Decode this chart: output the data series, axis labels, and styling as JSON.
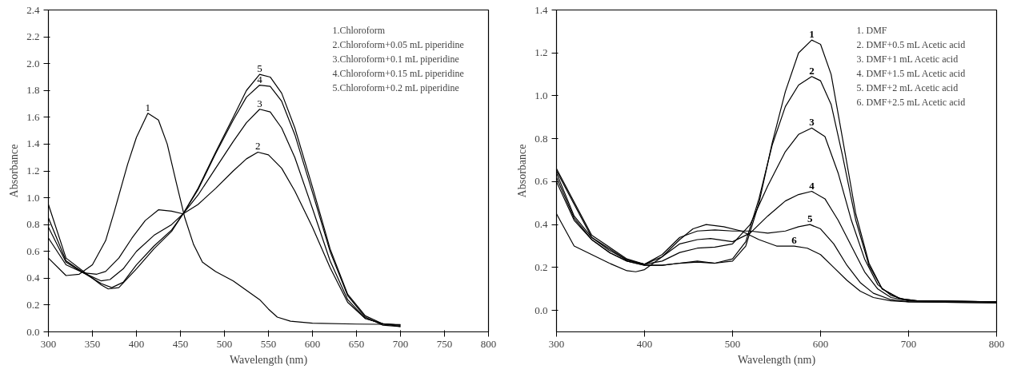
{
  "chart_data": [
    {
      "type": "line",
      "xlabel": "Wavelength (nm)",
      "ylabel": "Absorbance",
      "xlim": [
        300,
        800
      ],
      "ylim": [
        0,
        2.4
      ],
      "xticks": [
        300,
        350,
        400,
        450,
        500,
        550,
        600,
        650,
        700,
        750,
        800
      ],
      "yticks": [
        {
          "value": 0,
          "label": "0.0"
        },
        0.2,
        0.4,
        0.6,
        0.8,
        {
          "value": 1,
          "label": "1.0"
        },
        1.2,
        1.4,
        1.6,
        1.8,
        {
          "value": 2,
          "label": "2.0"
        },
        2.2,
        2.4
      ],
      "grid": false,
      "series": [
        {
          "name": "1",
          "color": "#000000",
          "x": [
            300,
            320,
            335,
            350,
            365,
            375,
            390,
            400,
            413,
            425,
            435,
            445,
            455,
            465,
            475,
            490,
            510,
            525,
            540,
            550,
            560,
            575,
            600,
            650,
            700
          ],
          "values": [
            0.55,
            0.42,
            0.43,
            0.5,
            0.68,
            0.9,
            1.25,
            1.45,
            1.63,
            1.58,
            1.4,
            1.12,
            0.85,
            0.65,
            0.52,
            0.45,
            0.38,
            0.31,
            0.24,
            0.17,
            0.11,
            0.08,
            0.065,
            0.058,
            0.055
          ]
        },
        {
          "name": "2",
          "color": "#000000",
          "x": [
            300,
            320,
            340,
            355,
            365,
            380,
            395,
            410,
            425,
            440,
            453,
            470,
            490,
            510,
            525,
            538,
            550,
            565,
            580,
            600,
            620,
            640,
            660,
            680,
            700
          ],
          "values": [
            0.7,
            0.5,
            0.44,
            0.43,
            0.45,
            0.55,
            0.7,
            0.83,
            0.91,
            0.9,
            0.88,
            0.95,
            1.07,
            1.2,
            1.29,
            1.34,
            1.32,
            1.22,
            1.05,
            0.78,
            0.48,
            0.22,
            0.1,
            0.06,
            0.05
          ]
        },
        {
          "name": "3",
          "color": "#000000",
          "x": [
            300,
            320,
            340,
            360,
            370,
            385,
            400,
            420,
            440,
            453,
            470,
            490,
            510,
            525,
            540,
            552,
            565,
            580,
            600,
            620,
            640,
            660,
            680,
            700
          ],
          "values": [
            0.78,
            0.52,
            0.44,
            0.38,
            0.39,
            0.47,
            0.6,
            0.72,
            0.8,
            0.88,
            1.02,
            1.22,
            1.42,
            1.56,
            1.66,
            1.64,
            1.52,
            1.3,
            0.92,
            0.53,
            0.24,
            0.1,
            0.06,
            0.04
          ]
        },
        {
          "name": "4",
          "color": "#000000",
          "x": [
            300,
            320,
            340,
            360,
            372,
            385,
            400,
            420,
            440,
            453,
            470,
            490,
            510,
            525,
            540,
            552,
            565,
            580,
            600,
            620,
            640,
            660,
            680,
            700
          ],
          "values": [
            0.85,
            0.53,
            0.44,
            0.36,
            0.33,
            0.37,
            0.5,
            0.64,
            0.76,
            0.88,
            1.06,
            1.33,
            1.58,
            1.75,
            1.84,
            1.83,
            1.72,
            1.47,
            1.04,
            0.6,
            0.27,
            0.11,
            0.05,
            0.04
          ]
        },
        {
          "name": "5",
          "color": "#000000",
          "x": [
            300,
            320,
            340,
            360,
            368,
            380,
            400,
            420,
            440,
            453,
            470,
            490,
            510,
            525,
            540,
            552,
            565,
            580,
            600,
            620,
            640,
            660,
            680,
            700
          ],
          "values": [
            0.95,
            0.55,
            0.45,
            0.35,
            0.32,
            0.33,
            0.47,
            0.62,
            0.75,
            0.88,
            1.07,
            1.34,
            1.6,
            1.8,
            1.92,
            1.9,
            1.78,
            1.52,
            1.08,
            0.62,
            0.28,
            0.12,
            0.06,
            0.05
          ]
        }
      ],
      "annotations": [
        "1.Chloroform",
        "2.Chloroform+0.05 mL piperidine",
        "3.Chloroform+0.1 mL piperidine",
        "4.Chloroform+0.15 mL piperidine",
        "5.Chloroform+0.2 mL piperidine"
      ]
    },
    {
      "type": "line",
      "xlabel": "Wavelength (nm)",
      "ylabel": "Absorbance",
      "xlim": [
        300,
        800
      ],
      "ylim": [
        -0.1,
        1.4
      ],
      "xticks": [
        300,
        400,
        500,
        600,
        700,
        800
      ],
      "yticks": [
        {
          "value": 0,
          "label": "0.0"
        },
        0.2,
        0.4,
        0.6,
        0.8,
        {
          "value": 1,
          "label": "1.0"
        },
        1.2,
        1.4
      ],
      "grid": false,
      "series": [
        {
          "name": "1",
          "color": "#000000",
          "x": [
            300,
            320,
            340,
            360,
            380,
            400,
            420,
            440,
            460,
            480,
            500,
            515,
            530,
            545,
            560,
            575,
            590,
            600,
            612,
            625,
            640,
            655,
            670,
            690,
            710,
            800
          ],
          "values": [
            0.6,
            0.42,
            0.33,
            0.27,
            0.23,
            0.21,
            0.21,
            0.22,
            0.225,
            0.22,
            0.23,
            0.3,
            0.5,
            0.78,
            1.02,
            1.2,
            1.26,
            1.24,
            1.1,
            0.8,
            0.45,
            0.22,
            0.1,
            0.055,
            0.045,
            0.04
          ]
        },
        {
          "name": "2",
          "color": "#000000",
          "x": [
            300,
            320,
            340,
            360,
            380,
            400,
            420,
            440,
            460,
            480,
            500,
            515,
            530,
            545,
            560,
            575,
            590,
            600,
            612,
            625,
            640,
            655,
            670,
            690,
            710,
            800
          ],
          "values": [
            0.62,
            0.43,
            0.33,
            0.27,
            0.23,
            0.21,
            0.21,
            0.22,
            0.23,
            0.22,
            0.24,
            0.32,
            0.52,
            0.77,
            0.95,
            1.05,
            1.09,
            1.07,
            0.96,
            0.72,
            0.42,
            0.21,
            0.1,
            0.055,
            0.045,
            0.04
          ]
        },
        {
          "name": "3",
          "color": "#000000",
          "x": [
            300,
            320,
            340,
            360,
            380,
            400,
            420,
            440,
            460,
            480,
            500,
            520,
            540,
            560,
            575,
            590,
            605,
            620,
            635,
            650,
            665,
            680,
            700,
            800
          ],
          "values": [
            0.64,
            0.44,
            0.34,
            0.28,
            0.235,
            0.215,
            0.23,
            0.27,
            0.29,
            0.295,
            0.31,
            0.4,
            0.58,
            0.74,
            0.82,
            0.85,
            0.81,
            0.64,
            0.42,
            0.24,
            0.12,
            0.07,
            0.045,
            0.04
          ]
        },
        {
          "name": "4",
          "color": "#000000",
          "x": [
            300,
            340,
            380,
            400,
            420,
            440,
            460,
            475,
            500,
            520,
            540,
            560,
            575,
            590,
            605,
            620,
            635,
            650,
            665,
            680,
            700,
            800
          ],
          "values": [
            0.65,
            0.34,
            0.235,
            0.215,
            0.25,
            0.31,
            0.33,
            0.335,
            0.32,
            0.36,
            0.44,
            0.51,
            0.54,
            0.555,
            0.52,
            0.42,
            0.3,
            0.18,
            0.1,
            0.06,
            0.045,
            0.04
          ]
        },
        {
          "name": "5",
          "color": "#000000",
          "x": [
            300,
            340,
            380,
            400,
            420,
            440,
            460,
            480,
            500,
            520,
            540,
            560,
            575,
            588,
            600,
            615,
            630,
            645,
            660,
            680,
            700,
            800
          ],
          "values": [
            0.66,
            0.35,
            0.24,
            0.215,
            0.26,
            0.34,
            0.37,
            0.375,
            0.37,
            0.37,
            0.36,
            0.37,
            0.39,
            0.4,
            0.38,
            0.31,
            0.21,
            0.13,
            0.08,
            0.05,
            0.04,
            0.035
          ]
        },
        {
          "name": "6",
          "color": "#000000",
          "x": [
            300,
            320,
            340,
            360,
            380,
            390,
            400,
            420,
            440,
            455,
            470,
            490,
            510,
            530,
            550,
            570,
            585,
            600,
            615,
            630,
            645,
            660,
            680,
            700,
            800
          ],
          "values": [
            0.45,
            0.3,
            0.26,
            0.22,
            0.185,
            0.18,
            0.19,
            0.25,
            0.33,
            0.38,
            0.4,
            0.39,
            0.37,
            0.33,
            0.3,
            0.3,
            0.29,
            0.26,
            0.2,
            0.14,
            0.09,
            0.06,
            0.045,
            0.04,
            0.035
          ]
        }
      ],
      "annotations": [
        "1. DMF",
        "2. DMF+0.5 mL Acetic acid",
        "3. DMF+1 mL Acetic acid",
        "4. DMF+1.5 mL Acetic acid",
        "5. DMF+2 mL Acetic acid",
        "6. DMF+2.5 mL Acetic acid"
      ]
    }
  ]
}
